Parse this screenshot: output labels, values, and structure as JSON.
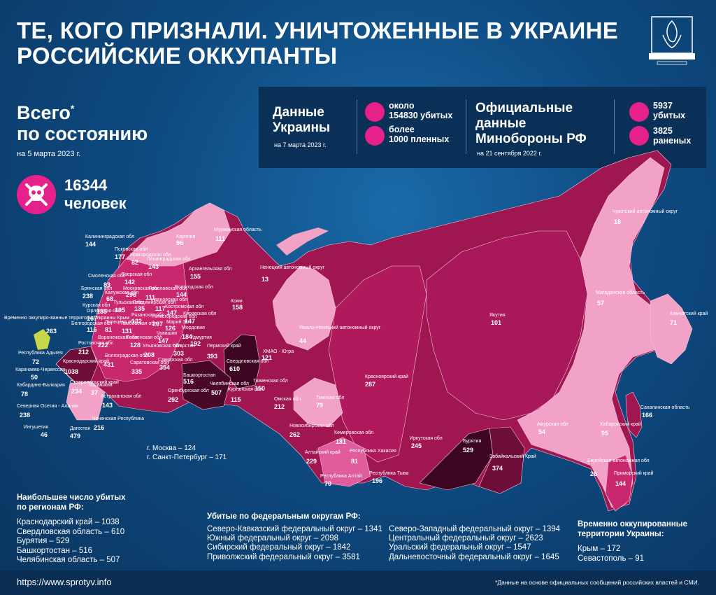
{
  "header": {
    "title_line1": "ТЕ, КОГО ПРИЗНАЛИ. УНИЧТОЖЕННЫЕ В УКРАИНЕ",
    "title_line2": "РОССИЙСКИЕ ОККУПАНТЫ"
  },
  "total": {
    "line1": "Всего",
    "star": "*",
    "line2": "по состоянию",
    "date": "на 5 марта 2023 г.",
    "count": "16344",
    "unit": "человек"
  },
  "ukraine_data": {
    "heading_line1": "Данные",
    "heading_line2": "Украины",
    "date": "на 7 марта 2023 г.",
    "killed_line1": "около",
    "killed_line2": "154830 убитых",
    "captured_line1": "более",
    "captured_line2": "1000 пленных"
  },
  "russia_data": {
    "heading_line1": "Официальные",
    "heading_line2": "данные",
    "heading_line3": "Минобороны РФ",
    "date": "на 21 сентября 2022 г.",
    "killed_line1": "5937",
    "killed_line2": "убитых",
    "wounded_line1": "3825",
    "wounded_line2": "раненых"
  },
  "regions": [
    {
      "label": "Калининградская обл",
      "value": "144"
    },
    {
      "label": "Мурманская область",
      "value": "111"
    },
    {
      "label": "Карелия",
      "value": "96"
    },
    {
      "label": "Псковская обл",
      "value": "177"
    },
    {
      "label": "Новгородская обл",
      "value": "82"
    },
    {
      "label": "Ленинградская обл",
      "value": "143"
    },
    {
      "label": "Архангельская обл",
      "value": "155"
    },
    {
      "label": "Ненецкий автономный округ",
      "value": "13"
    },
    {
      "label": "Смоленская обл",
      "value": "83"
    },
    {
      "label": "Тверская обл",
      "value": "142"
    },
    {
      "label": "Вологодская обл",
      "value": "144"
    },
    {
      "label": "Брянская обл",
      "value": "238"
    },
    {
      "label": "Калужская обл",
      "value": "68"
    },
    {
      "label": "Московская обл",
      "value": "296"
    },
    {
      "label": "Ярославская обл",
      "value": "111"
    },
    {
      "label": "Коми",
      "value": "158"
    },
    {
      "label": "Курская обл",
      "value": "135"
    },
    {
      "label": "Тульская обл",
      "value": "105"
    },
    {
      "label": "Орловская обл",
      "value": "167"
    },
    {
      "label": "Владимирская обл",
      "value": "135"
    },
    {
      "label": "Ивановская обл",
      "value": "117"
    },
    {
      "label": "Костромская обл",
      "value": "147"
    },
    {
      "label": "Рязанская обл",
      "value": "132"
    },
    {
      "label": "Нижегородская обл",
      "value": "297"
    },
    {
      "label": "Марий Эл",
      "value": "126"
    },
    {
      "label": "Кировская обл",
      "value": "147"
    },
    {
      "label": "Белгородская обл",
      "value": "116"
    },
    {
      "label": "Липецкая обл",
      "value": "81"
    },
    {
      "label": "Тамбовская обл",
      "value": "131"
    },
    {
      "label": "Пензенская обл",
      "value": "128"
    },
    {
      "label": "Чувашия",
      "value": "147"
    },
    {
      "label": "Удмуртия",
      "value": "192"
    },
    {
      "label": "Пермский край",
      "value": "393"
    },
    {
      "label": "Воронежская обл",
      "value": "222"
    },
    {
      "label": "Мордовия",
      "value": "184"
    },
    {
      "label": "Татарстан",
      "value": "303"
    },
    {
      "label": "Ульяновская обл",
      "value": "208"
    },
    {
      "label": "Ростовская обл",
      "value": "212"
    },
    {
      "label": "Саратовская обл",
      "value": "335"
    },
    {
      "label": "Самарская обл",
      "value": "394"
    },
    {
      "label": "Свердловская обл",
      "value": "610"
    },
    {
      "label": "ХМАО - Югра",
      "value": "121"
    },
    {
      "label": "Ямало-Ненецкий автономный округ",
      "value": "44"
    },
    {
      "label": "Волгоградская обл",
      "value": "431"
    },
    {
      "label": "Краснодарский край",
      "value": "1038"
    },
    {
      "label": "Республика Адыгея",
      "value": "72"
    },
    {
      "label": "Карачаево-Черкессия",
      "value": "50"
    },
    {
      "label": "Ставропольский край",
      "value": "234"
    },
    {
      "label": "Калмыкия",
      "value": "37"
    },
    {
      "label": "Кабардино-Балкария",
      "value": "78"
    },
    {
      "label": "Астраханская обл",
      "value": "143"
    },
    {
      "label": "Северная Осетия - Алания",
      "value": "238"
    },
    {
      "label": "Ингушетия",
      "value": "46"
    },
    {
      "label": "Чеченская Республика",
      "value": "216"
    },
    {
      "label": "Дагестан",
      "value": "479"
    },
    {
      "label": "Башкортостан",
      "value": "516"
    },
    {
      "label": "Оренбургская обл",
      "value": "292"
    },
    {
      "label": "Челябинская обл",
      "value": "507"
    },
    {
      "label": "Курганская обл",
      "value": "115"
    },
    {
      "label": "Тюменская обл",
      "value": "150"
    },
    {
      "label": "Омская обл",
      "value": "212"
    },
    {
      "label": "Томская обл",
      "value": "79"
    },
    {
      "label": "Новосибирская обл",
      "value": "262"
    },
    {
      "label": "Кемеровская обл",
      "value": "181"
    },
    {
      "label": "Алтайский край",
      "value": "229"
    },
    {
      "label": "Республика Алтай",
      "value": "70"
    },
    {
      "label": "Республика Хакасия",
      "value": "81"
    },
    {
      "label": "Республика Тыва",
      "value": "196"
    },
    {
      "label": "Красноярский край",
      "value": "287"
    },
    {
      "label": "Иркутская обл",
      "value": "245"
    },
    {
      "label": "Бурятия",
      "value": "529"
    },
    {
      "label": "Забайкальский Край",
      "value": "374"
    },
    {
      "label": "Якутия",
      "value": "101"
    },
    {
      "label": "Чукотский автономный округ",
      "value": "18"
    },
    {
      "label": "Магаданская область",
      "value": "57"
    },
    {
      "label": "Камчатский край",
      "value": "71"
    },
    {
      "label": "Сахалинская область",
      "value": "166"
    },
    {
      "label": "Амурская обл",
      "value": "54"
    },
    {
      "label": "Хабаровский край",
      "value": "95"
    },
    {
      "label": "Еврейская автономная обл",
      "value": "26"
    },
    {
      "label": "Приморский край",
      "value": "144"
    },
    {
      "label": "Временно оккупиро-ванные территории Украины Крым",
      "value": "263"
    }
  ],
  "capitals": [
    "г. Москва – 124",
    "г. Санкт-Петербург – 171"
  ],
  "top_regions": {
    "heading_line1": "Наибольшее число убитых",
    "heading_line2": "по регионам РФ:",
    "items": [
      "Краснодарский край – 1038",
      "Свердловская область – 610",
      "Бурятия – 529",
      "Башкортостан – 516",
      "Челябинская область – 507"
    ]
  },
  "federal": {
    "heading": "Убитые по федеральным округам РФ:",
    "col1": [
      "Северо-Кавказский федеральный округ – 1341",
      "Южный федеральный округ – 2098",
      "Сибирский федеральный округ – 1842",
      "Приволжский федеральный округ – 3581"
    ],
    "col2": [
      "Северо-Западный федеральный округ – 1394",
      "Центральный федеральный округ – 2623",
      "Уральский федеральный округ – 1547",
      "Дальневосточный федеральный округ – 1645"
    ]
  },
  "occupied": {
    "heading_line1": "Временно оккупированные",
    "heading_line2": "территории Украины:",
    "items": [
      "Крым – 172",
      "Севастополь – 91"
    ]
  },
  "footer": {
    "url": "https://www.sprotyv.info",
    "note": "*Данные на основе официальных сообщений российских властей и СМИ."
  },
  "colors": {
    "background": "#0e4a80",
    "light_pink": "#f2a2c6",
    "pink": "#e05c9c",
    "magenta": "#c9286f",
    "crimson": "#a01650",
    "dark_crimson": "#6e0d38",
    "darkest": "#3d0620",
    "crimea": "#c8d64a",
    "accent": "#e7218b"
  }
}
